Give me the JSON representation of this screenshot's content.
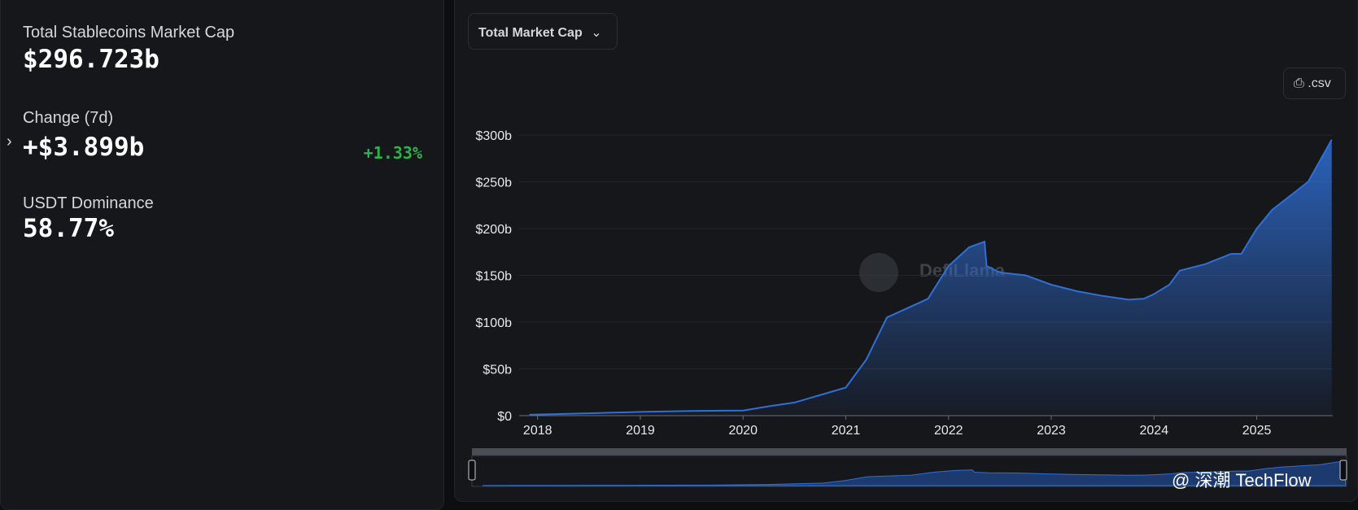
{
  "stats": [
    {
      "label": "Total Stablecoins Market Cap",
      "value": "$296.723b"
    },
    {
      "label": "Change (7d)",
      "value": "+$3.899b",
      "change": "+1.33%"
    },
    {
      "label": "USDT Dominance",
      "value": "58.77%"
    }
  ],
  "dropdown": "Total Market Cap",
  "csv_button": ".csv",
  "watermark": "DefiLlama",
  "credit": "@ 深潮 TechFlow",
  "chart_data": {
    "type": "area",
    "x": [
      2017.92,
      2018.5,
      2019.0,
      2019.5,
      2020.0,
      2020.25,
      2020.5,
      2020.75,
      2021.0,
      2021.2,
      2021.4,
      2021.6,
      2021.8,
      2022.0,
      2022.2,
      2022.35,
      2022.37,
      2022.5,
      2022.75,
      2023.0,
      2023.25,
      2023.5,
      2023.75,
      2023.9,
      2024.0,
      2024.15,
      2024.25,
      2024.5,
      2024.75,
      2024.85,
      2025.0,
      2025.15,
      2025.5,
      2025.73
    ],
    "values": [
      1,
      2.5,
      4,
      5,
      5.5,
      10,
      14,
      22,
      30,
      60,
      105,
      115,
      125,
      160,
      180,
      186,
      160,
      153,
      150,
      140,
      133,
      128,
      124,
      125,
      130,
      140,
      155,
      162,
      173,
      173,
      200,
      220,
      250,
      295
    ],
    "color": "#2f6fd6",
    "xlim": [
      2017.82,
      2025.74
    ],
    "xticks": [
      2018,
      2019,
      2020,
      2021,
      2022,
      2023,
      2024,
      2025
    ],
    "ylim": [
      0,
      300
    ],
    "yticks": [
      {
        "value": 0,
        "label": "$0"
      },
      {
        "value": 50,
        "label": "$50b"
      },
      {
        "value": 100,
        "label": "$100b"
      },
      {
        "value": 150,
        "label": "$150b"
      },
      {
        "value": 200,
        "label": "$200b"
      },
      {
        "value": 250,
        "label": "$250b"
      },
      {
        "value": 300,
        "label": "$300b"
      }
    ],
    "grid": true
  }
}
